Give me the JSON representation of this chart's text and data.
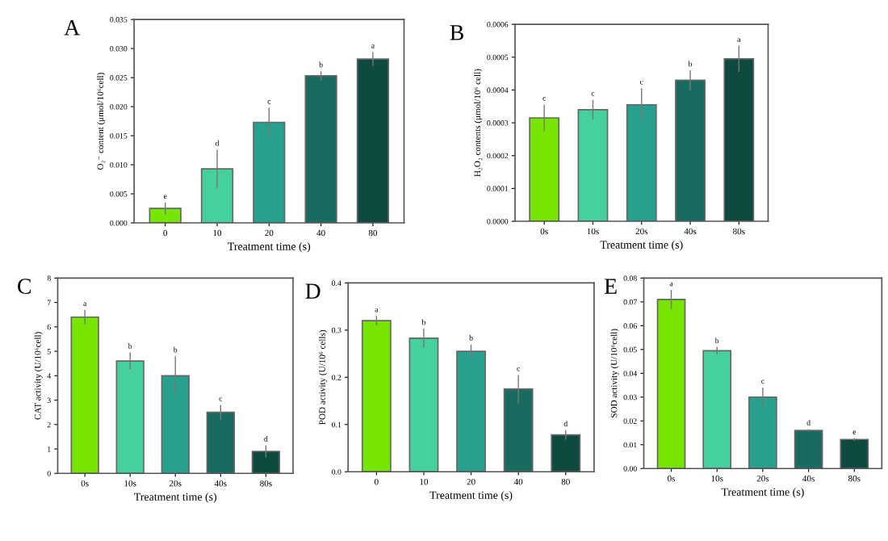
{
  "chart_data": [
    {
      "type": "bar",
      "title": "A",
      "xlabel": "Treatment time (s)",
      "ylabel": "O₂⁻ content (μmol/10⁶cell)",
      "categories": [
        "0",
        "10",
        "20",
        "40",
        "80"
      ],
      "values": [
        0.0025,
        0.0093,
        0.0173,
        0.0253,
        0.0282
      ],
      "errors": [
        0.001,
        0.0033,
        0.0025,
        0.0008,
        0.0012
      ],
      "colors": [
        "#76e600",
        "#45d09e",
        "#27a08e",
        "#1a6b5f",
        "#0f4a40"
      ],
      "ylim": [
        0,
        0.035
      ],
      "yticks": [
        {
          "value": 0,
          "label": "0.000"
        },
        {
          "value": 0.005,
          "label": "0.005"
        },
        {
          "value": 0.01,
          "label": "0.010"
        },
        {
          "value": 0.015,
          "label": "0.015"
        },
        {
          "value": 0.02,
          "label": "0.020"
        },
        {
          "value": 0.025,
          "label": "0.025"
        },
        {
          "value": 0.03,
          "label": "0.030"
        },
        {
          "value": 0.035,
          "label": "0.035"
        }
      ],
      "annotations": [
        {
          "text": "e",
          "x": "0",
          "y": 0.0035
        },
        {
          "text": "d",
          "x": "10",
          "y": 0.0126
        },
        {
          "text": "c",
          "x": "20",
          "y": 0.0198
        },
        {
          "text": "b",
          "x": "40",
          "y": 0.0261
        },
        {
          "text": "a",
          "x": "80",
          "y": 0.0294
        }
      ]
    },
    {
      "type": "bar",
      "title": "B",
      "xlabel": "Treatment time (s)",
      "ylabel": "H₂O₂ contents (μmol/10⁶ cell)",
      "categories": [
        "0s",
        "10s",
        "20s",
        "40s",
        "80s"
      ],
      "values": [
        0.000315,
        0.00034,
        0.000355,
        0.00043,
        0.000495
      ],
      "errors": [
        4e-05,
        3e-05,
        5e-05,
        3e-05,
        4e-05
      ],
      "colors": [
        "#76e600",
        "#45d09e",
        "#27a08e",
        "#1a6b5f",
        "#0f4a40"
      ],
      "ylim": [
        0,
        0.0006
      ],
      "yticks": [
        {
          "value": 0,
          "label": "0.0000"
        },
        {
          "value": 0.0001,
          "label": "0.0001"
        },
        {
          "value": 0.0002,
          "label": "0.0002"
        },
        {
          "value": 0.0003,
          "label": "0.0003"
        },
        {
          "value": 0.0004,
          "label": "0.0004"
        },
        {
          "value": 0.0005,
          "label": "0.0005"
        },
        {
          "value": 0.0006,
          "label": "0.0006"
        }
      ],
      "annotations": [
        {
          "text": "c",
          "x": "0s",
          "y": 0.000355
        },
        {
          "text": "c",
          "x": "10s",
          "y": 0.00037
        },
        {
          "text": "c",
          "x": "20s",
          "y": 0.000405
        },
        {
          "text": "b",
          "x": "40s",
          "y": 0.00046
        },
        {
          "text": "a",
          "x": "80s",
          "y": 0.000535
        }
      ]
    },
    {
      "type": "bar",
      "title": "C",
      "xlabel": "Treatment time (s)",
      "ylabel": "CAT activity (U/10⁶cell)",
      "categories": [
        "0s",
        "10s",
        "20s",
        "40s",
        "80s"
      ],
      "values": [
        6.4,
        4.6,
        4.0,
        2.5,
        0.9
      ],
      "errors": [
        0.3,
        0.35,
        0.8,
        0.3,
        0.25
      ],
      "colors": [
        "#76e600",
        "#45d09e",
        "#27a08e",
        "#1a6b5f",
        "#0f4a40"
      ],
      "ylim": [
        0,
        8
      ],
      "yticks": [
        0,
        1,
        2,
        3,
        4,
        5,
        6,
        7,
        8
      ],
      "annotations": [
        {
          "text": "a",
          "x": "0s",
          "y": 6.7
        },
        {
          "text": "b",
          "x": "10s",
          "y": 4.95
        },
        {
          "text": "b",
          "x": "20s",
          "y": 4.8
        },
        {
          "text": "c",
          "x": "40s",
          "y": 2.8
        },
        {
          "text": "d",
          "x": "80s",
          "y": 1.15
        }
      ]
    },
    {
      "type": "bar",
      "title": "D",
      "xlabel": "Treatment time (s)",
      "ylabel": "POD activity (U/10⁶ cells)",
      "categories": [
        "0",
        "10",
        "20",
        "40",
        "80"
      ],
      "values": [
        0.32,
        0.283,
        0.255,
        0.175,
        0.078
      ],
      "errors": [
        0.01,
        0.02,
        0.015,
        0.03,
        0.01
      ],
      "colors": [
        "#76e600",
        "#45d09e",
        "#27a08e",
        "#1a6b5f",
        "#0f4a40"
      ],
      "ylim": [
        0,
        0.4
      ],
      "yticks": [
        {
          "value": 0,
          "label": "0.0"
        },
        {
          "value": 0.1,
          "label": "0.1"
        },
        {
          "value": 0.2,
          "label": "0.2"
        },
        {
          "value": 0.3,
          "label": "0.3"
        },
        {
          "value": 0.4,
          "label": "0.4"
        }
      ],
      "annotations": [
        {
          "text": "a",
          "x": "0",
          "y": 0.33
        },
        {
          "text": "b",
          "x": "10",
          "y": 0.303
        },
        {
          "text": "b",
          "x": "20",
          "y": 0.27
        },
        {
          "text": "c",
          "x": "40",
          "y": 0.205
        },
        {
          "text": "d",
          "x": "80",
          "y": 0.088
        }
      ]
    },
    {
      "type": "bar",
      "title": "E",
      "xlabel": "Treatment time (s)",
      "ylabel": "SOD activity (U/10⁶cell)",
      "categories": [
        "0s",
        "10s",
        "20s",
        "40s",
        "80s"
      ],
      "values": [
        0.071,
        0.0495,
        0.03,
        0.016,
        0.0122
      ],
      "errors": [
        0.004,
        0.0015,
        0.004,
        0.0005,
        0.0005
      ],
      "colors": [
        "#76e600",
        "#45d09e",
        "#27a08e",
        "#1a6b5f",
        "#0f4a40"
      ],
      "ylim": [
        0,
        0.08
      ],
      "yticks": [
        {
          "value": 0,
          "label": "0.00"
        },
        {
          "value": 0.01,
          "label": "0.01"
        },
        {
          "value": 0.02,
          "label": "0.02"
        },
        {
          "value": 0.03,
          "label": "0.03"
        },
        {
          "value": 0.04,
          "label": "0.04"
        },
        {
          "value": 0.05,
          "label": "0.05"
        },
        {
          "value": 0.06,
          "label": "0.06"
        },
        {
          "value": 0.07,
          "label": "0.07"
        },
        {
          "value": 0.08,
          "label": "0.08"
        }
      ],
      "annotations": [
        {
          "text": "a",
          "x": "0s",
          "y": 0.075
        },
        {
          "text": "b",
          "x": "10s",
          "y": 0.051
        },
        {
          "text": "c",
          "x": "20s",
          "y": 0.034
        },
        {
          "text": "d",
          "x": "40s",
          "y": 0.0165
        },
        {
          "text": "e",
          "x": "80s",
          "y": 0.0127
        }
      ]
    }
  ]
}
